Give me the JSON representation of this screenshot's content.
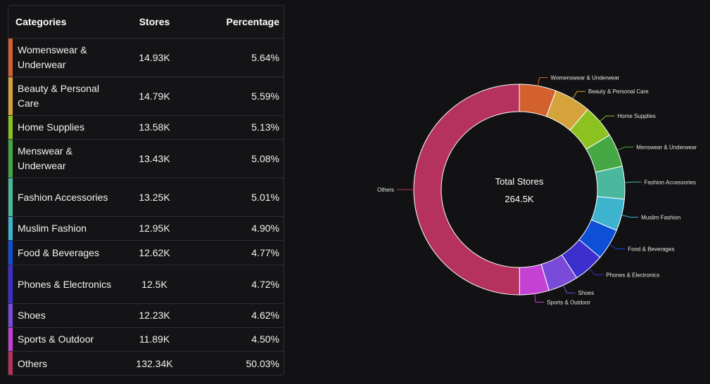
{
  "table": {
    "headers": {
      "category": "Categories",
      "stores": "Stores",
      "percentage": "Percentage"
    },
    "rows": [
      {
        "category": "Womenswear & Underwear",
        "stores": "14.93K",
        "percentage": "5.64%",
        "color": "#d2612e"
      },
      {
        "category": "Beauty & Personal Care",
        "stores": "14.79K",
        "percentage": "5.59%",
        "color": "#d4a33b"
      },
      {
        "category": "Home Supplies",
        "stores": "13.58K",
        "percentage": "5.13%",
        "color": "#8cc21f"
      },
      {
        "category": "Menswear & Underwear",
        "stores": "13.43K",
        "percentage": "5.08%",
        "color": "#45a845"
      },
      {
        "category": "Fashion Accessories",
        "stores": "13.25K",
        "percentage": "5.01%",
        "color": "#4ab89c"
      },
      {
        "category": "Muslim Fashion",
        "stores": "12.95K",
        "percentage": "4.90%",
        "color": "#3fb4cf"
      },
      {
        "category": "Food & Beverages",
        "stores": "12.62K",
        "percentage": "4.77%",
        "color": "#0d4fd6"
      },
      {
        "category": "Phones & Electronics",
        "stores": "12.5K",
        "percentage": "4.72%",
        "color": "#3d2fce"
      },
      {
        "category": "Shoes",
        "stores": "12.23K",
        "percentage": "4.62%",
        "color": "#7a4bd8"
      },
      {
        "category": "Sports & Outdoor",
        "stores": "11.89K",
        "percentage": "4.50%",
        "color": "#c441d4"
      },
      {
        "category": "Others",
        "stores": "132.34K",
        "percentage": "50.03%",
        "color": "#b5315e"
      }
    ]
  },
  "chart_data": {
    "type": "pie",
    "subtype": "donut",
    "center_label": "Total Stores",
    "center_value": "264.5K",
    "categories": [
      "Womenswear & Underwear",
      "Beauty & Personal Care",
      "Home Supplies",
      "Menswear & Underwear",
      "Fashion Accessories",
      "Muslim Fashion",
      "Food & Beverages",
      "Phones & Electronics",
      "Shoes",
      "Sports & Outdoor",
      "Others"
    ],
    "values": [
      5.64,
      5.59,
      5.13,
      5.08,
      5.01,
      4.9,
      4.77,
      4.72,
      4.62,
      4.5,
      50.03
    ],
    "colors": [
      "#d2612e",
      "#d4a33b",
      "#8cc21f",
      "#45a845",
      "#4ab89c",
      "#3fb4cf",
      "#0d4fd6",
      "#3d2fce",
      "#7a4bd8",
      "#c441d4",
      "#b5315e"
    ],
    "start": "top, clockwise"
  }
}
